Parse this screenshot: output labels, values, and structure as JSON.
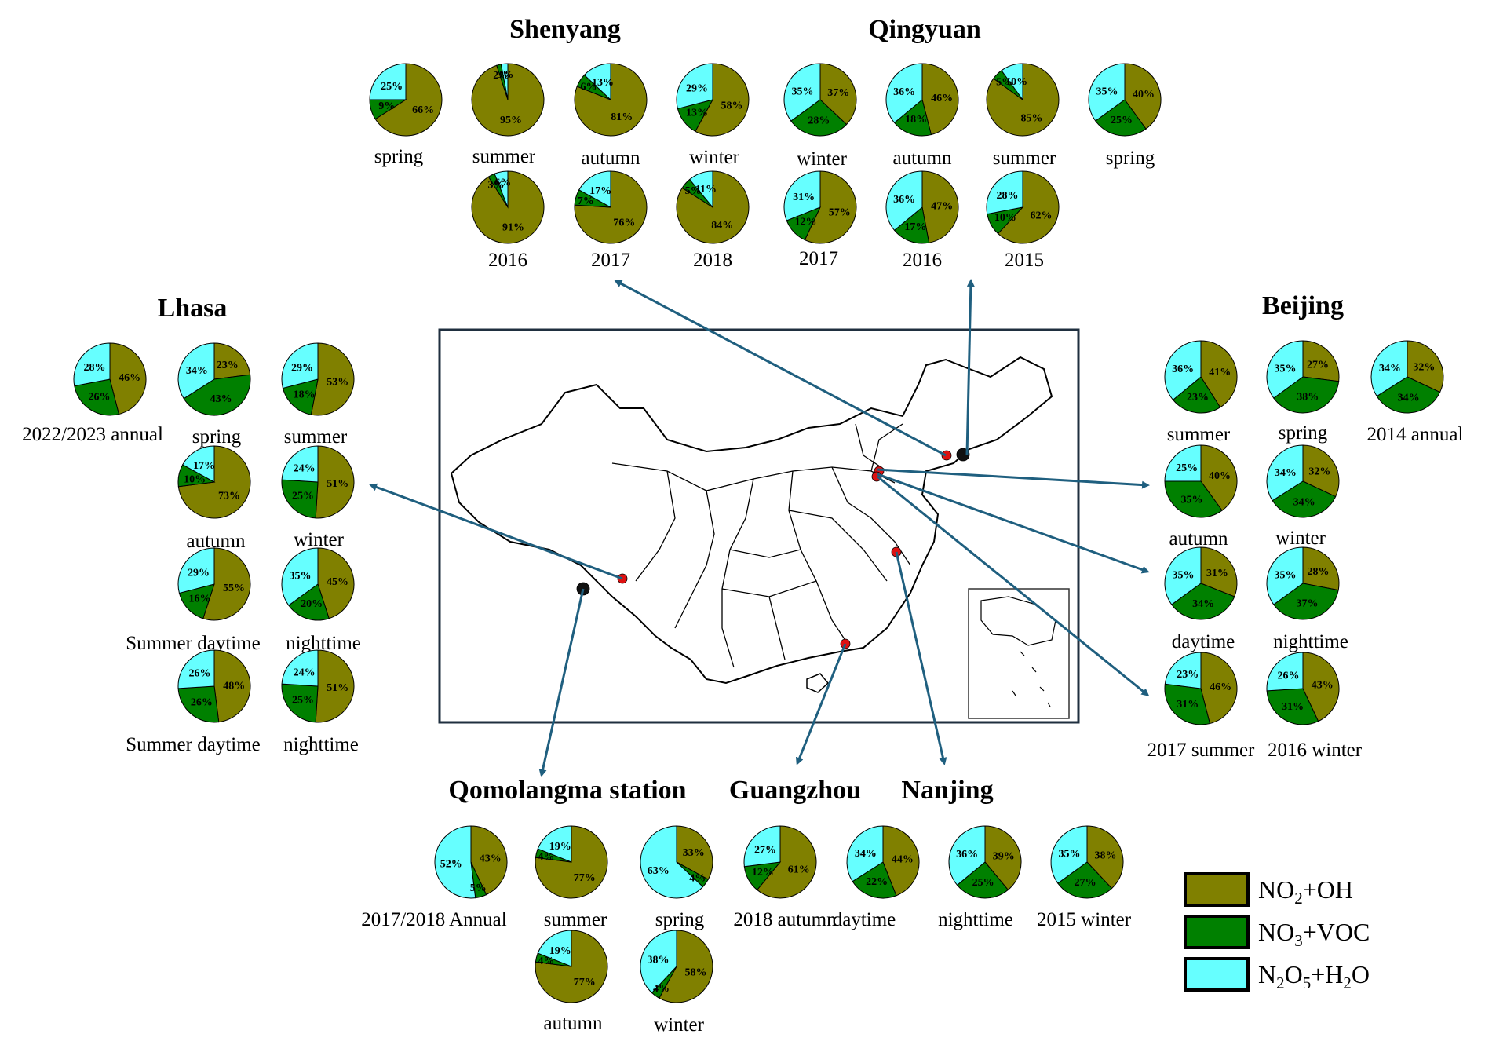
{
  "legend": [
    {
      "key": "no2_oh",
      "label": "NO",
      "sub": "2",
      "tail": "+OH",
      "color": "#808000"
    },
    {
      "key": "no3_voc",
      "label": "NO",
      "sub": "3",
      "tail": "+VOC",
      "color": "#008000"
    },
    {
      "key": "n2o5_h2o",
      "label": "N",
      "sub": "2",
      "mid": "O",
      "sub2": "5",
      "tail": "+H",
      "sub3": "2",
      "tail2": "O",
      "color": "#66ffff"
    }
  ],
  "regions": [
    {
      "id": "shenyang",
      "title": "Shenyang"
    },
    {
      "id": "qingyuan",
      "title": "Qingyuan"
    },
    {
      "id": "lhasa",
      "title": "Lhasa"
    },
    {
      "id": "beijing",
      "title": "Beijing"
    },
    {
      "id": "qomolangma",
      "title": "Qomolangma station"
    },
    {
      "id": "guangzhou",
      "title": "Guangzhou"
    },
    {
      "id": "nanjing",
      "title": "Nanjing"
    }
  ],
  "map": {
    "marker_color": "#dd1111",
    "arrow_color": "#1f5f7f"
  },
  "chart_data": {
    "type": "pie",
    "series_keys": [
      "NO2+OH",
      "NO3+VOC",
      "N2O5+H2O"
    ],
    "colors": [
      "#808000",
      "#008000",
      "#66ffff"
    ],
    "pies": [
      {
        "region": "Shenyang",
        "label": "spring",
        "values": [
          66,
          9,
          25
        ],
        "labels": [
          "66%",
          "9%",
          "25%"
        ]
      },
      {
        "region": "Shenyang",
        "label": "summer",
        "values": [
          95,
          2,
          3
        ],
        "labels": [
          "95%",
          "2%",
          "3%"
        ]
      },
      {
        "region": "Shenyang",
        "label": "autumn",
        "values": [
          81,
          6,
          13
        ],
        "labels": [
          "81%",
          "6%",
          "13%"
        ]
      },
      {
        "region": "Shenyang",
        "label": "winter",
        "values": [
          58,
          13,
          29
        ],
        "labels": [
          "58%",
          "13%",
          "29%"
        ]
      },
      {
        "region": "Shenyang",
        "label": "2016",
        "values": [
          91,
          3,
          6
        ],
        "labels": [
          "91%",
          "3%",
          "6%"
        ]
      },
      {
        "region": "Shenyang",
        "label": "2017",
        "values": [
          76,
          7,
          17
        ],
        "labels": [
          "76%",
          "7%",
          "17%"
        ]
      },
      {
        "region": "Shenyang",
        "label": "2018",
        "values": [
          84,
          5,
          11
        ],
        "labels": [
          "84%",
          "5%",
          "11%"
        ]
      },
      {
        "region": "Qingyuan",
        "label": "winter",
        "values": [
          37,
          28,
          35
        ],
        "labels": [
          "37%",
          "28%",
          "35%"
        ]
      },
      {
        "region": "Qingyuan",
        "label": "autumn",
        "values": [
          46,
          18,
          36
        ],
        "labels": [
          "46%",
          "18%",
          "36%"
        ]
      },
      {
        "region": "Qingyuan",
        "label": "summer",
        "values": [
          85,
          5,
          10
        ],
        "labels": [
          "85%",
          "5%",
          "10%"
        ]
      },
      {
        "region": "Qingyuan",
        "label": "spring",
        "values": [
          40,
          25,
          35
        ],
        "labels": [
          "40%",
          "25%",
          "35%"
        ]
      },
      {
        "region": "Qingyuan",
        "label": "2017",
        "values": [
          57,
          12,
          31
        ],
        "labels": [
          "57%",
          "12%",
          "31%"
        ]
      },
      {
        "region": "Qingyuan",
        "label": "2016",
        "values": [
          47,
          17,
          36
        ],
        "labels": [
          "47%",
          "17%",
          "36%"
        ]
      },
      {
        "region": "Qingyuan",
        "label": "2015",
        "values": [
          62,
          10,
          28
        ],
        "labels": [
          "62%",
          "10%",
          "28%"
        ]
      },
      {
        "region": "Lhasa",
        "label": "2022/2023 annual",
        "values": [
          46,
          26,
          28
        ],
        "labels": [
          "46%",
          "26%",
          "28%"
        ]
      },
      {
        "region": "Lhasa",
        "label": "spring",
        "values": [
          23,
          43,
          34
        ],
        "labels": [
          "23%",
          "43%",
          "34%"
        ]
      },
      {
        "region": "Lhasa",
        "label": "summer",
        "values": [
          53,
          18,
          29
        ],
        "labels": [
          "53%",
          "18%",
          "29%"
        ]
      },
      {
        "region": "Lhasa",
        "label": "autumn",
        "values": [
          73,
          10,
          17
        ],
        "labels": [
          "73%",
          "10%",
          "17%"
        ]
      },
      {
        "region": "Lhasa",
        "label": "winter",
        "values": [
          51,
          25,
          24
        ],
        "labels": [
          "51%",
          "25%",
          "24%"
        ]
      },
      {
        "region": "Lhasa",
        "label": "Summer daytime",
        "values": [
          55,
          16,
          29
        ],
        "labels": [
          "55%",
          "16%",
          "29%"
        ]
      },
      {
        "region": "Lhasa",
        "label": "nighttime",
        "values": [
          45,
          20,
          35
        ],
        "labels": [
          "45%",
          "20%",
          "35%"
        ]
      },
      {
        "region": "Lhasa",
        "label": "Summer daytime",
        "values": [
          48,
          26,
          26
        ],
        "labels": [
          "48%",
          "26%",
          "26%"
        ]
      },
      {
        "region": "Lhasa",
        "label": "nighttime",
        "values": [
          51,
          25,
          24
        ],
        "labels": [
          "51%",
          "25%",
          "24%"
        ]
      },
      {
        "region": "Beijing",
        "label": "summer",
        "values": [
          41,
          23,
          36
        ],
        "labels": [
          "41%",
          "23%",
          "36%"
        ]
      },
      {
        "region": "Beijing",
        "label": "spring",
        "values": [
          27,
          38,
          35
        ],
        "labels": [
          "27%",
          "38%",
          "35%"
        ]
      },
      {
        "region": "Beijing",
        "label": "2014 annual",
        "values": [
          32,
          34,
          34
        ],
        "labels": [
          "32%",
          "34%",
          "34%"
        ]
      },
      {
        "region": "Beijing",
        "label": "autumn",
        "values": [
          40,
          35,
          25
        ],
        "labels": [
          "40%",
          "35%",
          "25%"
        ]
      },
      {
        "region": "Beijing",
        "label": "winter",
        "values": [
          32,
          34,
          34
        ],
        "labels": [
          "32%",
          "34%",
          "34%"
        ]
      },
      {
        "region": "Beijing",
        "label": "daytime",
        "values": [
          31,
          34,
          35
        ],
        "labels": [
          "31%",
          "34%",
          "35%"
        ]
      },
      {
        "region": "Beijing",
        "label": "nighttime",
        "values": [
          28,
          37,
          35
        ],
        "labels": [
          "28%",
          "37%",
          "35%"
        ]
      },
      {
        "region": "Beijing",
        "label": "2017 summer",
        "values": [
          46,
          31,
          23
        ],
        "labels": [
          "46%",
          "31%",
          "23%"
        ]
      },
      {
        "region": "Beijing",
        "label": "2016 winter",
        "values": [
          43,
          31,
          26
        ],
        "labels": [
          "43%",
          "31%",
          "26%"
        ]
      },
      {
        "region": "Qomolangma station",
        "label": "2017/2018 Annual",
        "values": [
          43,
          5,
          52
        ],
        "labels": [
          "43%",
          "5%",
          "52%"
        ]
      },
      {
        "region": "Qomolangma station",
        "label": "summer",
        "values": [
          77,
          4,
          19
        ],
        "labels": [
          "77%",
          "4%",
          "19%"
        ]
      },
      {
        "region": "Qomolangma station",
        "label": "spring",
        "values": [
          33,
          4,
          63
        ],
        "labels": [
          "33%",
          "4%",
          "63%"
        ]
      },
      {
        "region": "Qomolangma station",
        "label": "autumn",
        "values": [
          77,
          4,
          19
        ],
        "labels": [
          "77%",
          "4%",
          "19%"
        ]
      },
      {
        "region": "Qomolangma station",
        "label": "winter",
        "values": [
          58,
          4,
          38
        ],
        "labels": [
          "58%",
          "4%",
          "38%"
        ]
      },
      {
        "region": "Guangzhou",
        "label": "2018 autumn",
        "values": [
          61,
          12,
          27
        ],
        "labels": [
          "61%",
          "12%",
          "27%"
        ]
      },
      {
        "region": "Nanjing",
        "label": "daytime",
        "values": [
          44,
          22,
          34
        ],
        "labels": [
          "44%",
          "22%",
          "34%"
        ]
      },
      {
        "region": "Nanjing",
        "label": "nighttime",
        "values": [
          39,
          25,
          36
        ],
        "labels": [
          "39%",
          "25%",
          "36%"
        ]
      },
      {
        "region": "Nanjing",
        "label": "2015 winter",
        "values": [
          38,
          27,
          35
        ],
        "labels": [
          "38%",
          "27%",
          "35%"
        ]
      }
    ]
  }
}
